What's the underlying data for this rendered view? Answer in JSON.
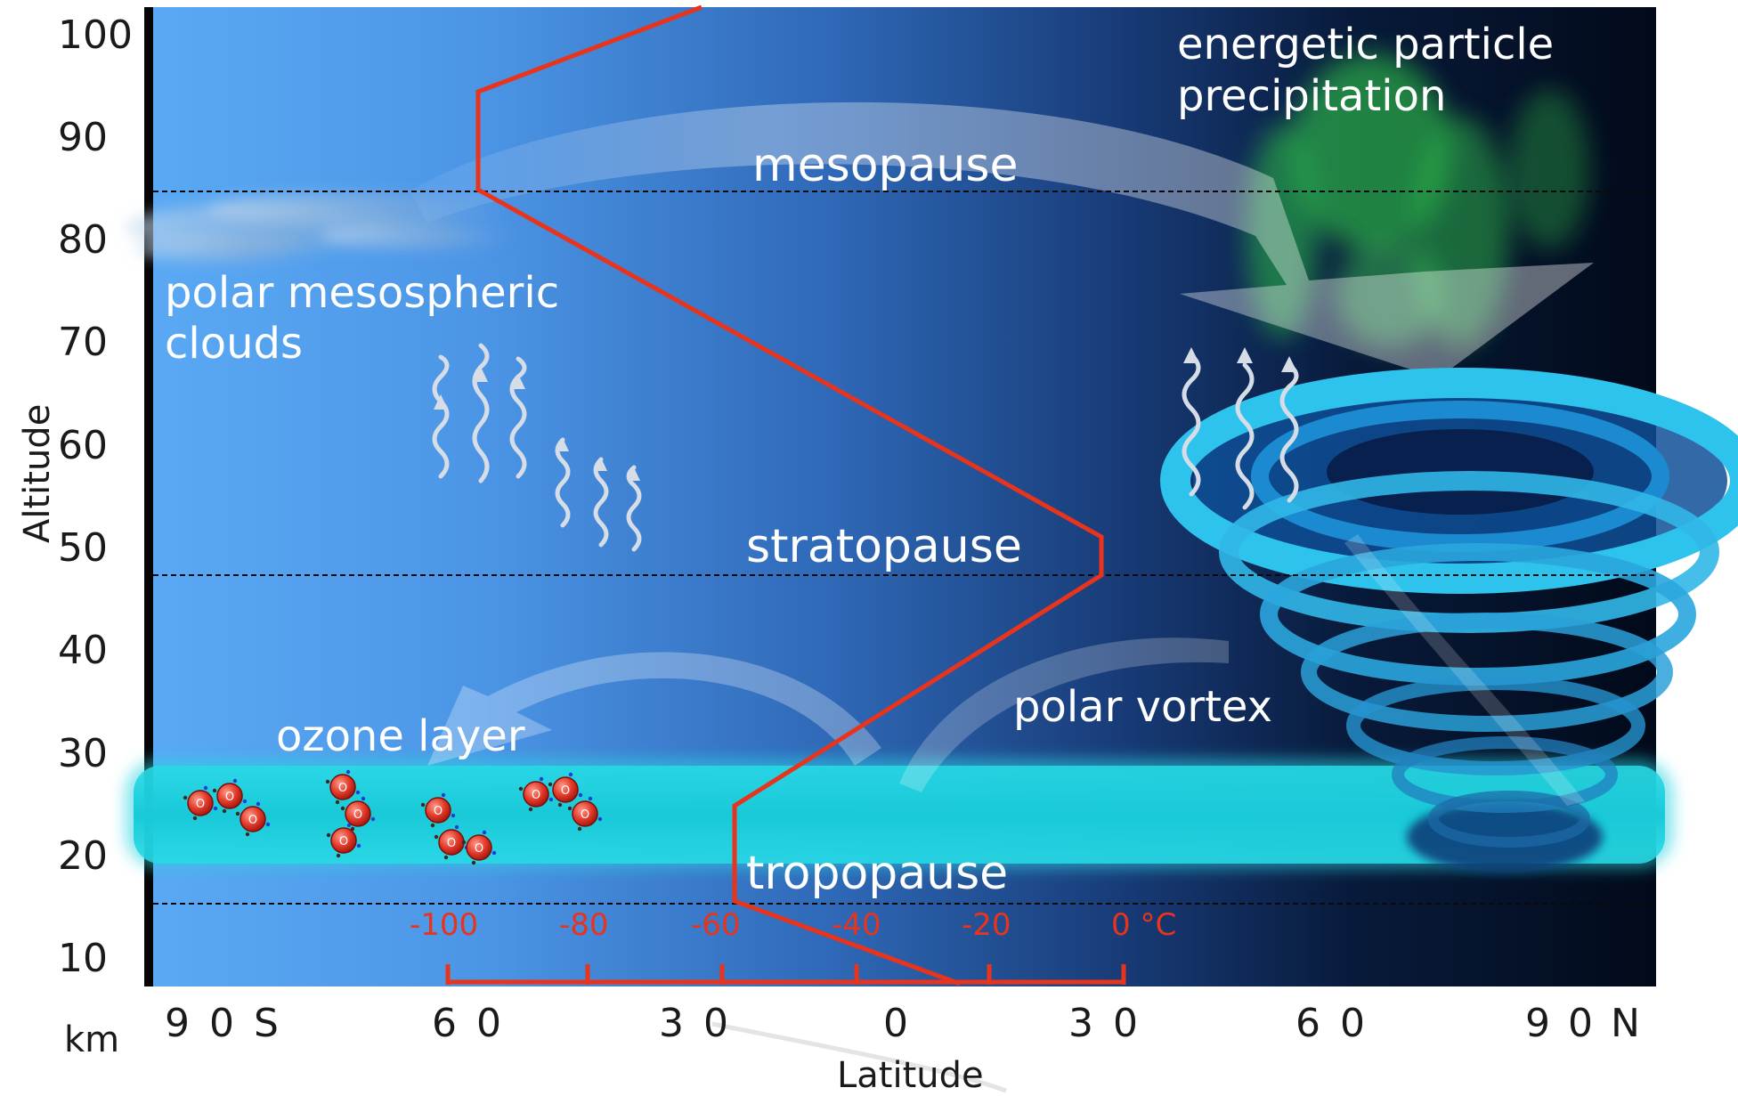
{
  "altitude_axis": {
    "title": "Altitude",
    "unit": "km",
    "ticks": [
      "100",
      "90",
      "80",
      "70",
      "60",
      "50",
      "40",
      "30",
      "20",
      "10"
    ]
  },
  "latitude_axis": {
    "title": "Latitude",
    "ticks": [
      "90S",
      "60",
      "30",
      "0",
      "30",
      "60",
      "90N"
    ]
  },
  "temperature_axis": {
    "unit": "°C",
    "ticks": [
      "-100",
      "-80",
      "-60",
      "-40",
      "-20",
      "0 °C"
    ]
  },
  "layers": {
    "mesopause": "mesopause",
    "stratopause": "stratopause",
    "tropopause": "tropopause"
  },
  "features": {
    "energetic_particles_line1": "energetic particle",
    "energetic_particles_line2": "precipitation",
    "pmc_line1": "polar mesospheric",
    "pmc_line2": "clouds",
    "ozone_layer": "ozone layer",
    "polar_vortex": "polar vortex"
  },
  "molecule_letter": "O",
  "colors": {
    "sky_light": "#5aa7f2",
    "sky_dark": "#020b1c",
    "temperature_profile": "#e8341c",
    "ozone_band": "#1fd5e0",
    "aurora": "#39d85a",
    "vortex": "#2ab8e6"
  }
}
